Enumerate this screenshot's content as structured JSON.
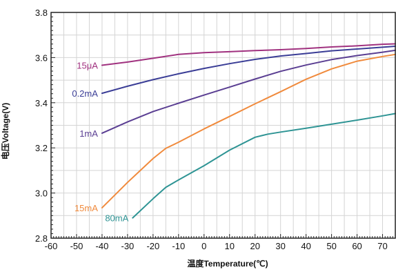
{
  "chart_data": {
    "type": "line",
    "title": "",
    "xlabel": "温度Temperature(℃)",
    "ylabel": "电压Voltage(V)",
    "xlim": [
      -60,
      75
    ],
    "ylim": [
      2.8,
      3.8
    ],
    "grid": true,
    "x_ticks": [
      -60,
      -50,
      -40,
      -30,
      -20,
      -10,
      0,
      10,
      20,
      30,
      40,
      50,
      60,
      70
    ],
    "x_tick_labels": [
      "-60",
      "-50",
      "-40",
      "-30",
      "-20",
      "-10",
      "0",
      "10",
      "20",
      "30",
      "40",
      "50",
      "60",
      "70"
    ],
    "y_ticks": [
      2.8,
      3.0,
      3.2,
      3.4,
      3.6,
      3.8
    ],
    "y_tick_labels": [
      "2.8",
      "3.0",
      "3.2",
      "3.4",
      "3.6",
      "3.8"
    ],
    "series": [
      {
        "name": "15μA",
        "color": "#a0317f",
        "x": [
          -40,
          -30,
          -20,
          -10,
          0,
          10,
          20,
          30,
          40,
          50,
          60,
          70,
          75
        ],
        "y": [
          3.566,
          3.58,
          3.597,
          3.614,
          3.622,
          3.626,
          3.631,
          3.635,
          3.64,
          3.647,
          3.652,
          3.659,
          3.661
        ]
      },
      {
        "name": "0.2mA",
        "color": "#3a3d96",
        "x": [
          -40,
          -30,
          -20,
          -10,
          0,
          10,
          20,
          30,
          40,
          50,
          60,
          70,
          75
        ],
        "y": [
          3.442,
          3.473,
          3.502,
          3.528,
          3.552,
          3.573,
          3.592,
          3.607,
          3.618,
          3.63,
          3.638,
          3.646,
          3.65
        ]
      },
      {
        "name": "1mA",
        "color": "#5a3e92",
        "x": [
          -40,
          -30,
          -20,
          -10,
          0,
          10,
          20,
          30,
          40,
          50,
          60,
          70,
          75
        ],
        "y": [
          3.265,
          3.315,
          3.361,
          3.398,
          3.434,
          3.469,
          3.505,
          3.539,
          3.567,
          3.591,
          3.609,
          3.624,
          3.632
        ]
      },
      {
        "name": "15mA",
        "color": "#f08a3c",
        "x": [
          -40,
          -30,
          -20,
          -15,
          -10,
          0,
          10,
          20,
          30,
          40,
          50,
          60,
          70,
          75
        ],
        "y": [
          2.935,
          3.047,
          3.153,
          3.198,
          3.225,
          3.284,
          3.339,
          3.395,
          3.449,
          3.504,
          3.55,
          3.584,
          3.605,
          3.614
        ]
      },
      {
        "name": "80mA",
        "color": "#2e9494",
        "x": [
          -28,
          -20,
          -15,
          -10,
          0,
          10,
          20,
          25,
          30,
          40,
          50,
          60,
          70,
          75
        ],
        "y": [
          2.89,
          2.975,
          3.025,
          3.058,
          3.121,
          3.19,
          3.247,
          3.261,
          3.27,
          3.287,
          3.305,
          3.323,
          3.342,
          3.352
        ]
      }
    ]
  }
}
